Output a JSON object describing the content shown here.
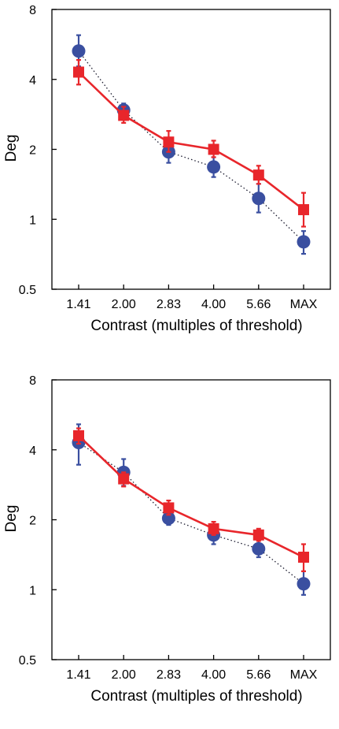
{
  "colors": {
    "red_series": "#e8262b",
    "blue_series": "#3a4fa0",
    "axis": "#000000",
    "background": "#ffffff"
  },
  "chart_data": [
    {
      "type": "line",
      "xlabel": "Contrast (multiples of threshold)",
      "ylabel": "Deg",
      "categories": [
        "1.41",
        "2.00",
        "2.83",
        "4.00",
        "5.66",
        "MAX"
      ],
      "yscale": "log",
      "ylim": [
        0.5,
        8
      ],
      "yticks": [
        "0.5",
        "1",
        "2",
        "4",
        "8"
      ],
      "grid": false,
      "series": [
        {
          "marker": "circle",
          "line_style": "dotted",
          "color": "#3a4fa0",
          "values": [
            5.3,
            2.95,
            1.95,
            1.68,
            1.23,
            0.8
          ],
          "err_low": [
            4.55,
            2.75,
            1.75,
            1.52,
            1.07,
            0.71
          ],
          "err_high": [
            6.2,
            3.15,
            2.22,
            1.85,
            1.42,
            0.89
          ]
        },
        {
          "marker": "square",
          "line_style": "solid",
          "color": "#e8262b",
          "values": [
            4.3,
            2.8,
            2.15,
            2.0,
            1.55,
            1.1
          ],
          "err_low": [
            3.8,
            2.6,
            1.95,
            1.85,
            1.42,
            0.93
          ],
          "err_high": [
            4.85,
            3.05,
            2.4,
            2.18,
            1.7,
            1.3
          ]
        }
      ]
    },
    {
      "type": "line",
      "xlabel": "Contrast (multiples of threshold)",
      "ylabel": "Deg",
      "categories": [
        "1.41",
        "2.00",
        "2.83",
        "4.00",
        "5.66",
        "MAX"
      ],
      "yscale": "log",
      "ylim": [
        0.5,
        8
      ],
      "yticks": [
        "0.5",
        "1",
        "2",
        "4",
        "8"
      ],
      "grid": false,
      "series": [
        {
          "marker": "circle",
          "line_style": "dotted",
          "color": "#3a4fa0",
          "values": [
            4.3,
            3.2,
            2.03,
            1.72,
            1.5,
            1.06
          ],
          "err_low": [
            3.45,
            2.8,
            1.9,
            1.57,
            1.38,
            0.95
          ],
          "err_high": [
            5.15,
            3.65,
            2.18,
            1.9,
            1.64,
            1.2
          ]
        },
        {
          "marker": "square",
          "line_style": "solid",
          "color": "#e8262b",
          "values": [
            4.6,
            3.0,
            2.25,
            1.83,
            1.72,
            1.38
          ],
          "err_low": [
            4.25,
            2.78,
            2.1,
            1.72,
            1.62,
            1.2
          ],
          "err_high": [
            4.95,
            3.2,
            2.42,
            1.96,
            1.83,
            1.57
          ]
        }
      ]
    }
  ]
}
